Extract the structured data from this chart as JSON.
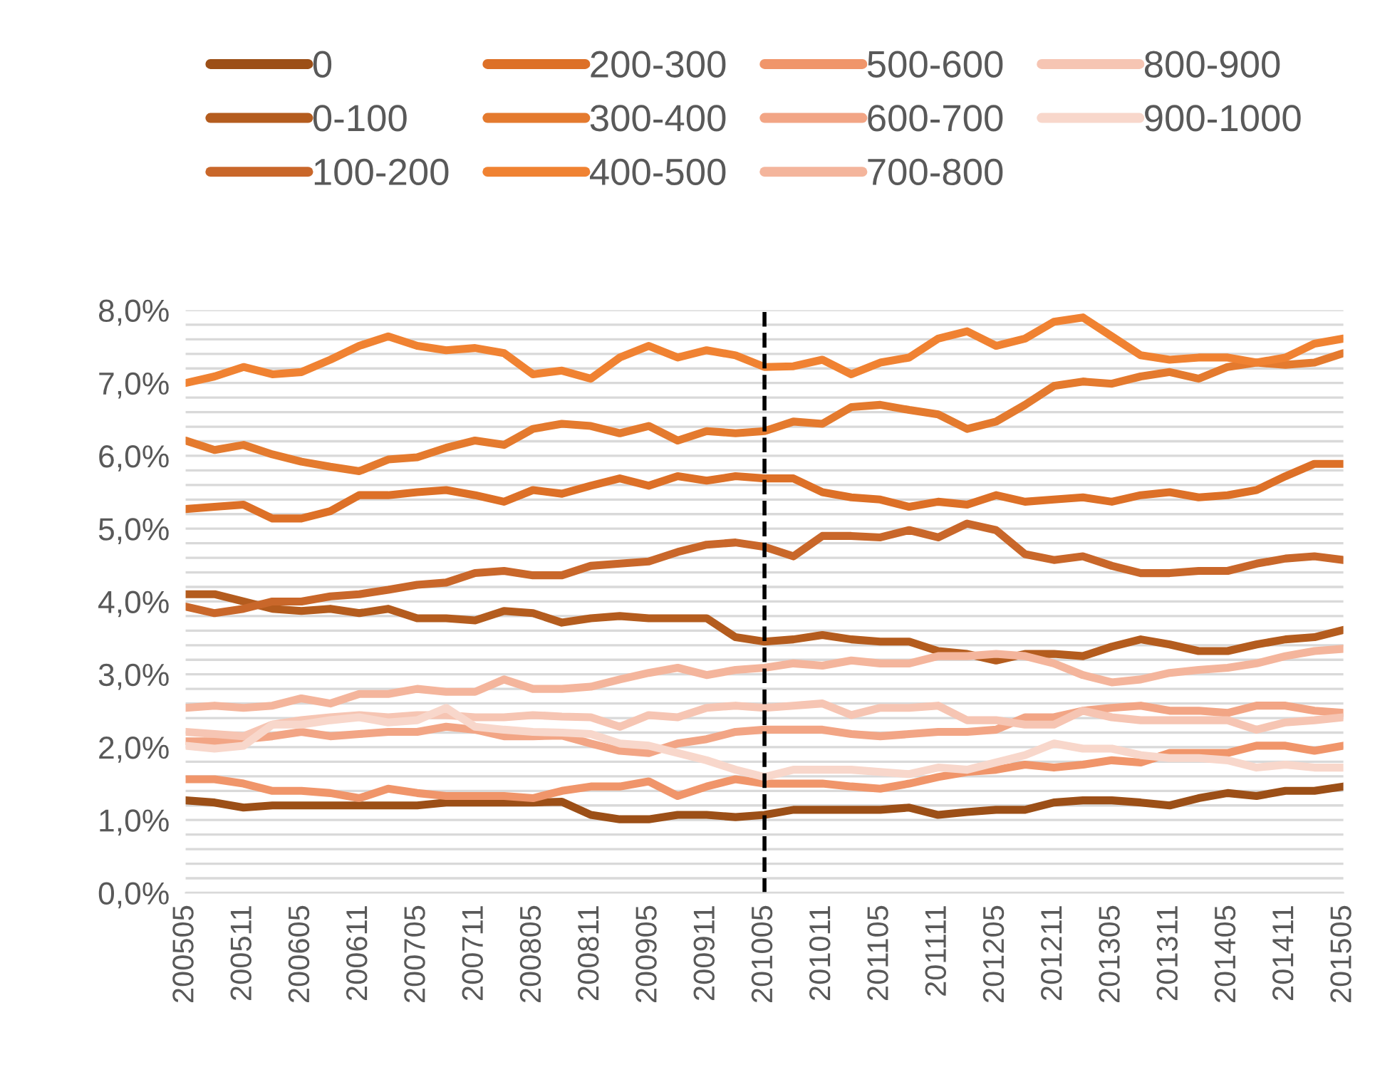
{
  "chart_data": {
    "type": "line",
    "categories": [
      "200505",
      null,
      "200511",
      null,
      "200605",
      null,
      "200611",
      null,
      "200705",
      null,
      "200711",
      null,
      "200805",
      null,
      "200811",
      null,
      "200905",
      null,
      "200911",
      null,
      "201005",
      null,
      "201011",
      null,
      "201105",
      null,
      "201111",
      null,
      "201205",
      null,
      "201211",
      null,
      "201305",
      null,
      "201311",
      null,
      "201405",
      null,
      "201411",
      null,
      "201505"
    ],
    "series": [
      {
        "name": "0",
        "color": "#9c4f17",
        "values": [
          1.27,
          1.24,
          1.17,
          1.2,
          1.2,
          1.2,
          1.2,
          1.2,
          1.2,
          1.24,
          1.24,
          1.24,
          1.24,
          1.25,
          1.07,
          1.01,
          1.01,
          1.07,
          1.07,
          1.04,
          1.07,
          1.14,
          1.14,
          1.14,
          1.14,
          1.17,
          1.07,
          1.11,
          1.14,
          1.14,
          1.24,
          1.27,
          1.27,
          1.24,
          1.2,
          1.3,
          1.37,
          1.33,
          1.4,
          1.4,
          1.46
        ]
      },
      {
        "name": "0-100",
        "color": "#b45c1e",
        "values": [
          4.1,
          4.1,
          4.0,
          3.9,
          3.87,
          3.9,
          3.84,
          3.9,
          3.77,
          3.77,
          3.74,
          3.87,
          3.84,
          3.71,
          3.77,
          3.8,
          3.77,
          3.77,
          3.77,
          3.51,
          3.45,
          3.48,
          3.54,
          3.48,
          3.45,
          3.45,
          3.32,
          3.28,
          3.19,
          3.28,
          3.28,
          3.25,
          3.38,
          3.48,
          3.41,
          3.32,
          3.32,
          3.41,
          3.48,
          3.51,
          3.61
        ]
      },
      {
        "name": "100-200",
        "color": "#c9672a",
        "values": [
          3.93,
          3.84,
          3.9,
          4.0,
          4.0,
          4.07,
          4.1,
          4.16,
          4.23,
          4.26,
          4.39,
          4.42,
          4.36,
          4.36,
          4.49,
          4.52,
          4.55,
          4.68,
          4.78,
          4.81,
          4.75,
          4.62,
          4.9,
          4.9,
          4.88,
          4.98,
          4.88,
          5.07,
          4.98,
          4.65,
          4.57,
          4.62,
          4.49,
          4.39,
          4.39,
          4.42,
          4.42,
          4.52,
          4.59,
          4.62,
          4.57
        ]
      },
      {
        "name": "200-300",
        "color": "#dd7027",
        "values": [
          5.27,
          5.3,
          5.33,
          5.14,
          5.14,
          5.24,
          5.46,
          5.46,
          5.5,
          5.53,
          5.46,
          5.37,
          5.53,
          5.48,
          5.59,
          5.69,
          5.59,
          5.72,
          5.66,
          5.72,
          5.69,
          5.69,
          5.5,
          5.43,
          5.4,
          5.3,
          5.37,
          5.33,
          5.46,
          5.37,
          5.4,
          5.43,
          5.37,
          5.46,
          5.5,
          5.43,
          5.46,
          5.53,
          5.72,
          5.89,
          5.89
        ]
      },
      {
        "name": "300-400",
        "color": "#e47a2e",
        "values": [
          6.21,
          6.08,
          6.15,
          6.02,
          5.92,
          5.85,
          5.79,
          5.95,
          5.98,
          6.11,
          6.21,
          6.15,
          6.37,
          6.44,
          6.41,
          6.31,
          6.41,
          6.21,
          6.34,
          6.31,
          6.34,
          6.47,
          6.44,
          6.67,
          6.7,
          6.63,
          6.57,
          6.37,
          6.47,
          6.7,
          6.96,
          7.02,
          6.99,
          7.09,
          7.15,
          7.06,
          7.22,
          7.28,
          7.25,
          7.28,
          7.41
        ]
      },
      {
        "name": "400-500",
        "color": "#f08232",
        "values": [
          7.0,
          7.09,
          7.22,
          7.12,
          7.15,
          7.32,
          7.51,
          7.64,
          7.51,
          7.45,
          7.48,
          7.41,
          7.12,
          7.17,
          7.06,
          7.35,
          7.51,
          7.35,
          7.45,
          7.38,
          7.22,
          7.23,
          7.32,
          7.12,
          7.28,
          7.35,
          7.61,
          7.71,
          7.51,
          7.61,
          7.84,
          7.9,
          7.64,
          7.38,
          7.32,
          7.35,
          7.35,
          7.28,
          7.35,
          7.54,
          7.61
        ]
      },
      {
        "name": "500-600",
        "color": "#f0956a",
        "values": [
          1.56,
          1.56,
          1.5,
          1.4,
          1.4,
          1.37,
          1.3,
          1.43,
          1.37,
          1.33,
          1.33,
          1.33,
          1.3,
          1.4,
          1.46,
          1.46,
          1.53,
          1.33,
          1.46,
          1.56,
          1.5,
          1.5,
          1.5,
          1.46,
          1.43,
          1.5,
          1.59,
          1.66,
          1.69,
          1.76,
          1.72,
          1.76,
          1.82,
          1.79,
          1.92,
          1.92,
          1.92,
          2.02,
          2.02,
          1.95,
          2.02
        ]
      },
      {
        "name": "600-700",
        "color": "#f2a585",
        "values": [
          2.08,
          2.08,
          2.11,
          2.15,
          2.21,
          2.15,
          2.18,
          2.21,
          2.21,
          2.28,
          2.24,
          2.15,
          2.15,
          2.16,
          2.05,
          1.95,
          1.92,
          2.05,
          2.11,
          2.21,
          2.24,
          2.24,
          2.24,
          2.18,
          2.15,
          2.18,
          2.21,
          2.21,
          2.24,
          2.41,
          2.41,
          2.5,
          2.54,
          2.57,
          2.5,
          2.5,
          2.47,
          2.57,
          2.57,
          2.5,
          2.47
        ]
      },
      {
        "name": "700-800",
        "color": "#f4b59c",
        "values": [
          2.54,
          2.57,
          2.54,
          2.57,
          2.67,
          2.6,
          2.73,
          2.73,
          2.8,
          2.76,
          2.76,
          2.93,
          2.8,
          2.8,
          2.83,
          2.93,
          3.02,
          3.09,
          2.99,
          3.06,
          3.09,
          3.15,
          3.12,
          3.19,
          3.15,
          3.15,
          3.25,
          3.25,
          3.28,
          3.25,
          3.15,
          2.99,
          2.89,
          2.93,
          3.02,
          3.06,
          3.09,
          3.15,
          3.25,
          3.32,
          3.35
        ]
      },
      {
        "name": "800-900",
        "color": "#f6c5b3",
        "values": [
          2.21,
          2.18,
          2.15,
          2.31,
          2.37,
          2.41,
          2.44,
          2.41,
          2.44,
          2.44,
          2.41,
          2.41,
          2.44,
          2.42,
          2.41,
          2.28,
          2.44,
          2.41,
          2.54,
          2.57,
          2.54,
          2.57,
          2.6,
          2.44,
          2.54,
          2.54,
          2.57,
          2.37,
          2.37,
          2.31,
          2.31,
          2.5,
          2.41,
          2.37,
          2.37,
          2.37,
          2.37,
          2.24,
          2.34,
          2.37,
          2.41
        ]
      },
      {
        "name": "900-1000",
        "color": "#f8d7cb",
        "values": [
          2.02,
          1.98,
          2.02,
          2.31,
          2.31,
          2.37,
          2.41,
          2.34,
          2.37,
          2.54,
          2.28,
          2.24,
          2.21,
          2.2,
          2.18,
          2.05,
          2.02,
          1.92,
          1.82,
          1.69,
          1.59,
          1.69,
          1.69,
          1.69,
          1.66,
          1.63,
          1.72,
          1.69,
          1.79,
          1.89,
          2.05,
          1.98,
          1.98,
          1.89,
          1.85,
          1.85,
          1.82,
          1.72,
          1.76,
          1.72,
          1.72
        ]
      }
    ],
    "ylim": [
      0,
      8
    ],
    "yticks": [
      {
        "value": 0,
        "label": "0,0%"
      },
      {
        "value": 0.2,
        "label": null
      },
      {
        "value": 0.4,
        "label": null
      },
      {
        "value": 0.6,
        "label": null
      },
      {
        "value": 0.8,
        "label": null
      },
      {
        "value": 1,
        "label": "1,0%"
      },
      {
        "value": 1.2,
        "label": null
      },
      {
        "value": 1.4,
        "label": null
      },
      {
        "value": 1.6,
        "label": null
      },
      {
        "value": 1.8,
        "label": null
      },
      {
        "value": 2,
        "label": "2,0%"
      },
      {
        "value": 2.2,
        "label": null
      },
      {
        "value": 2.4,
        "label": null
      },
      {
        "value": 2.6,
        "label": null
      },
      {
        "value": 2.8,
        "label": null
      },
      {
        "value": 3,
        "label": "3,0%"
      },
      {
        "value": 3.2,
        "label": null
      },
      {
        "value": 3.4,
        "label": null
      },
      {
        "value": 3.6,
        "label": null
      },
      {
        "value": 3.8,
        "label": null
      },
      {
        "value": 4,
        "label": "4,0%"
      },
      {
        "value": 4.2,
        "label": null
      },
      {
        "value": 4.4,
        "label": null
      },
      {
        "value": 4.6,
        "label": null
      },
      {
        "value": 4.8,
        "label": null
      },
      {
        "value": 5,
        "label": "5,0%"
      },
      {
        "value": 5.2,
        "label": null
      },
      {
        "value": 5.4,
        "label": null
      },
      {
        "value": 5.6,
        "label": null
      },
      {
        "value": 5.8,
        "label": null
      },
      {
        "value": 6,
        "label": "6,0%"
      },
      {
        "value": 6.2,
        "label": null
      },
      {
        "value": 6.4,
        "label": null
      },
      {
        "value": 6.6,
        "label": null
      },
      {
        "value": 6.8,
        "label": null
      },
      {
        "value": 7,
        "label": "7,0%"
      },
      {
        "value": 7.2,
        "label": null
      },
      {
        "value": 7.4,
        "label": null
      },
      {
        "value": 7.6,
        "label": null
      },
      {
        "value": 7.8,
        "label": null
      },
      {
        "value": 8,
        "label": "8,0%"
      }
    ],
    "ref_lines": [
      {
        "axis": "x",
        "value": "201005",
        "color": "#000000",
        "line_style": "dashed"
      }
    ],
    "grid": "y",
    "legend": "top",
    "marker": "none",
    "line_style": "solid"
  }
}
